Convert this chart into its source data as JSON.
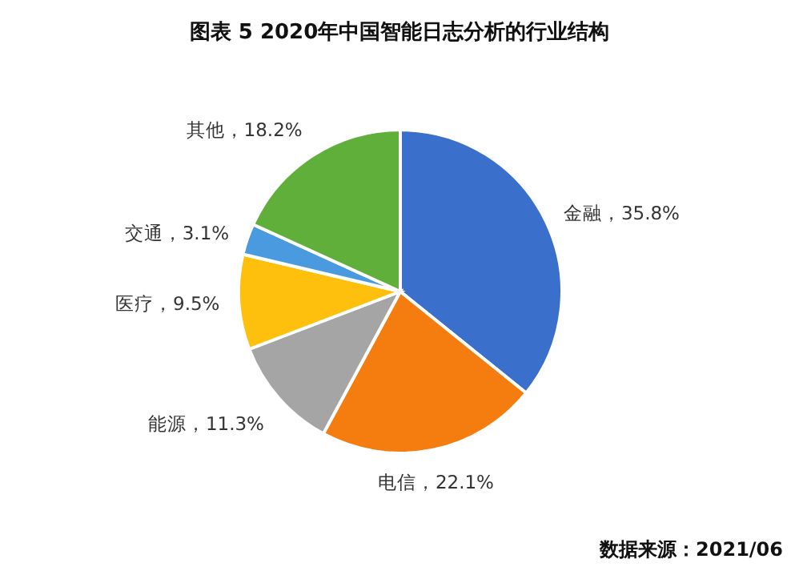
{
  "chart_data": {
    "type": "pie",
    "title": "图表 5 2020年中国智能日志分析的行业结构",
    "categories": [
      "金融",
      "电信",
      "能源",
      "医疗",
      "交通",
      "其他"
    ],
    "values": [
      35.8,
      22.1,
      11.3,
      9.5,
      3.1,
      18.2
    ],
    "colors": [
      "#3b6fcc",
      "#f57c0f",
      "#a5a5a5",
      "#fec00c",
      "#4a9ae0",
      "#5faf3a"
    ],
    "value_labels": [
      "35.8%",
      "22.1%",
      "11.3%",
      "9.5%",
      "3.1%",
      "18.2%"
    ],
    "annotations": [
      "数据来源：2021/06"
    ]
  }
}
